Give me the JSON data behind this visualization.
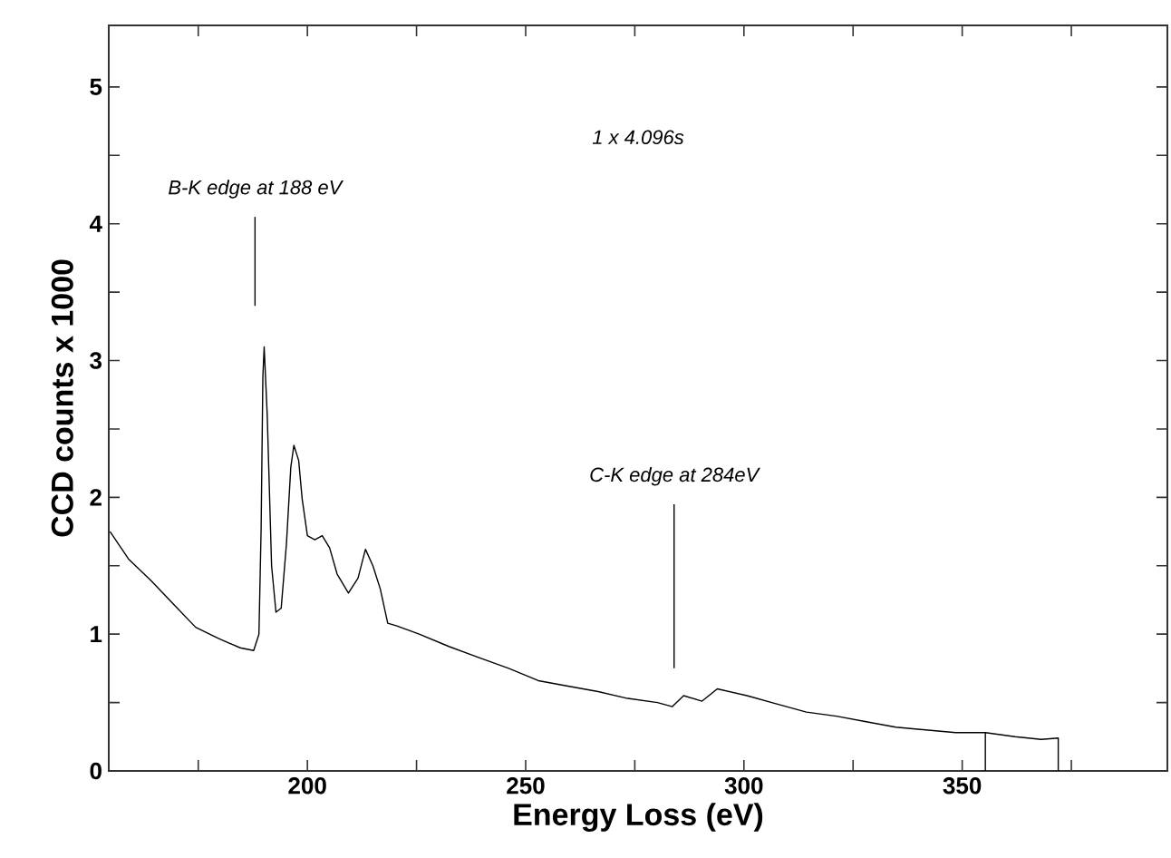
{
  "chart_data": {
    "type": "line",
    "xlabel": "Energy Loss (eV)",
    "ylabel": "CCD counts x 1000",
    "annotations": [
      "1 x 4.096s"
    ],
    "ref_lines": [
      {
        "axis": "x",
        "value": 188,
        "label": "B-K edge at 188 eV"
      },
      {
        "axis": "x",
        "value": 284,
        "label": "C-K edge at 284eV"
      }
    ],
    "x": [
      154.8,
      159.0,
      164.2,
      169.3,
      174.4,
      179.5,
      184.6,
      187.7,
      188.9,
      189.4,
      189.8,
      190.1,
      190.8,
      191.8,
      192.8,
      194.0,
      195.2,
      196.2,
      196.9,
      198.0,
      198.8,
      200.0,
      201.7,
      203.4,
      205.1,
      206.8,
      209.4,
      211.6,
      213.3,
      215.0,
      216.7,
      218.4,
      220.5,
      225.6,
      232.4,
      239.2,
      246.1,
      252.9,
      259.7,
      266.6,
      273.4,
      280.2,
      283.6,
      286.2,
      290.4,
      293.9,
      300.7,
      307.5,
      314.3,
      321.2,
      328.0,
      334.8,
      341.6,
      348.5,
      355.3,
      355.3,
      355.3,
      362.1,
      368.1,
      372.0,
      372.0
    ],
    "series": [
      {
        "color": "#000000",
        "values": [
          1.75,
          1.55,
          1.39,
          1.22,
          1.05,
          0.97,
          0.9,
          0.88,
          1.0,
          1.77,
          2.88,
          3.1,
          2.6,
          1.5,
          1.16,
          1.19,
          1.66,
          2.22,
          2.38,
          2.27,
          1.99,
          1.72,
          1.69,
          1.72,
          1.63,
          1.44,
          1.3,
          1.41,
          1.62,
          1.5,
          1.33,
          1.08,
          1.06,
          1.0,
          0.91,
          0.83,
          0.75,
          0.66,
          0.62,
          0.58,
          0.53,
          0.5,
          0.47,
          0.55,
          0.51,
          0.6,
          0.55,
          0.49,
          0.43,
          0.4,
          0.36,
          0.32,
          0.3,
          0.28,
          0.28,
          0,
          0.28,
          0.25,
          0.23,
          0.24,
          0
        ]
      }
    ],
    "xlim": [
      154.5,
      397
    ],
    "xticks": [
      {
        "value": 175,
        "label": null
      },
      200,
      {
        "value": 225,
        "label": null
      },
      250,
      {
        "value": 275,
        "label": null
      },
      300,
      {
        "value": 325,
        "label": null
      },
      350,
      {
        "value": 375,
        "label": null
      }
    ],
    "ylim": [
      0,
      5.45
    ],
    "yticks": [
      0,
      {
        "value": 0.5,
        "label": null
      },
      1,
      {
        "value": 1.5,
        "label": null
      },
      2,
      {
        "value": 2.5,
        "label": null
      },
      3,
      {
        "value": 3.5,
        "label": null
      },
      4,
      {
        "value": 4.5,
        "label": null
      },
      5
    ],
    "grid": false,
    "marker": "none",
    "line_style": "solid"
  }
}
